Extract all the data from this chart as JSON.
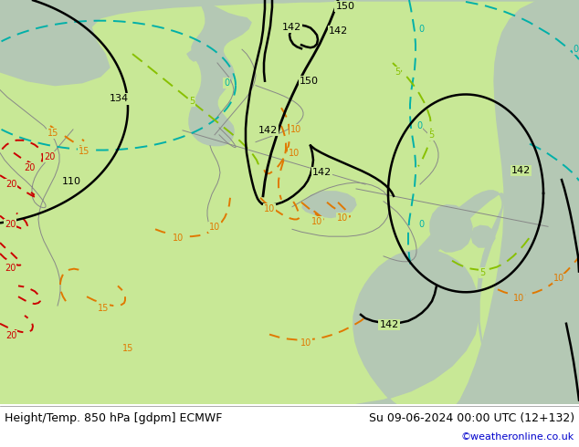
{
  "title_left": "Height/Temp. 850 hPa [gdpm] ECMWF",
  "title_right": "Su 09-06-2024 00:00 UTC (12+132)",
  "credit": "©weatheronline.co.uk",
  "light_green": "#c8e896",
  "gray_land": "#b4c8b4",
  "white_bg": "#ffffff",
  "figsize": [
    6.34,
    4.9
  ],
  "dpi": 100
}
